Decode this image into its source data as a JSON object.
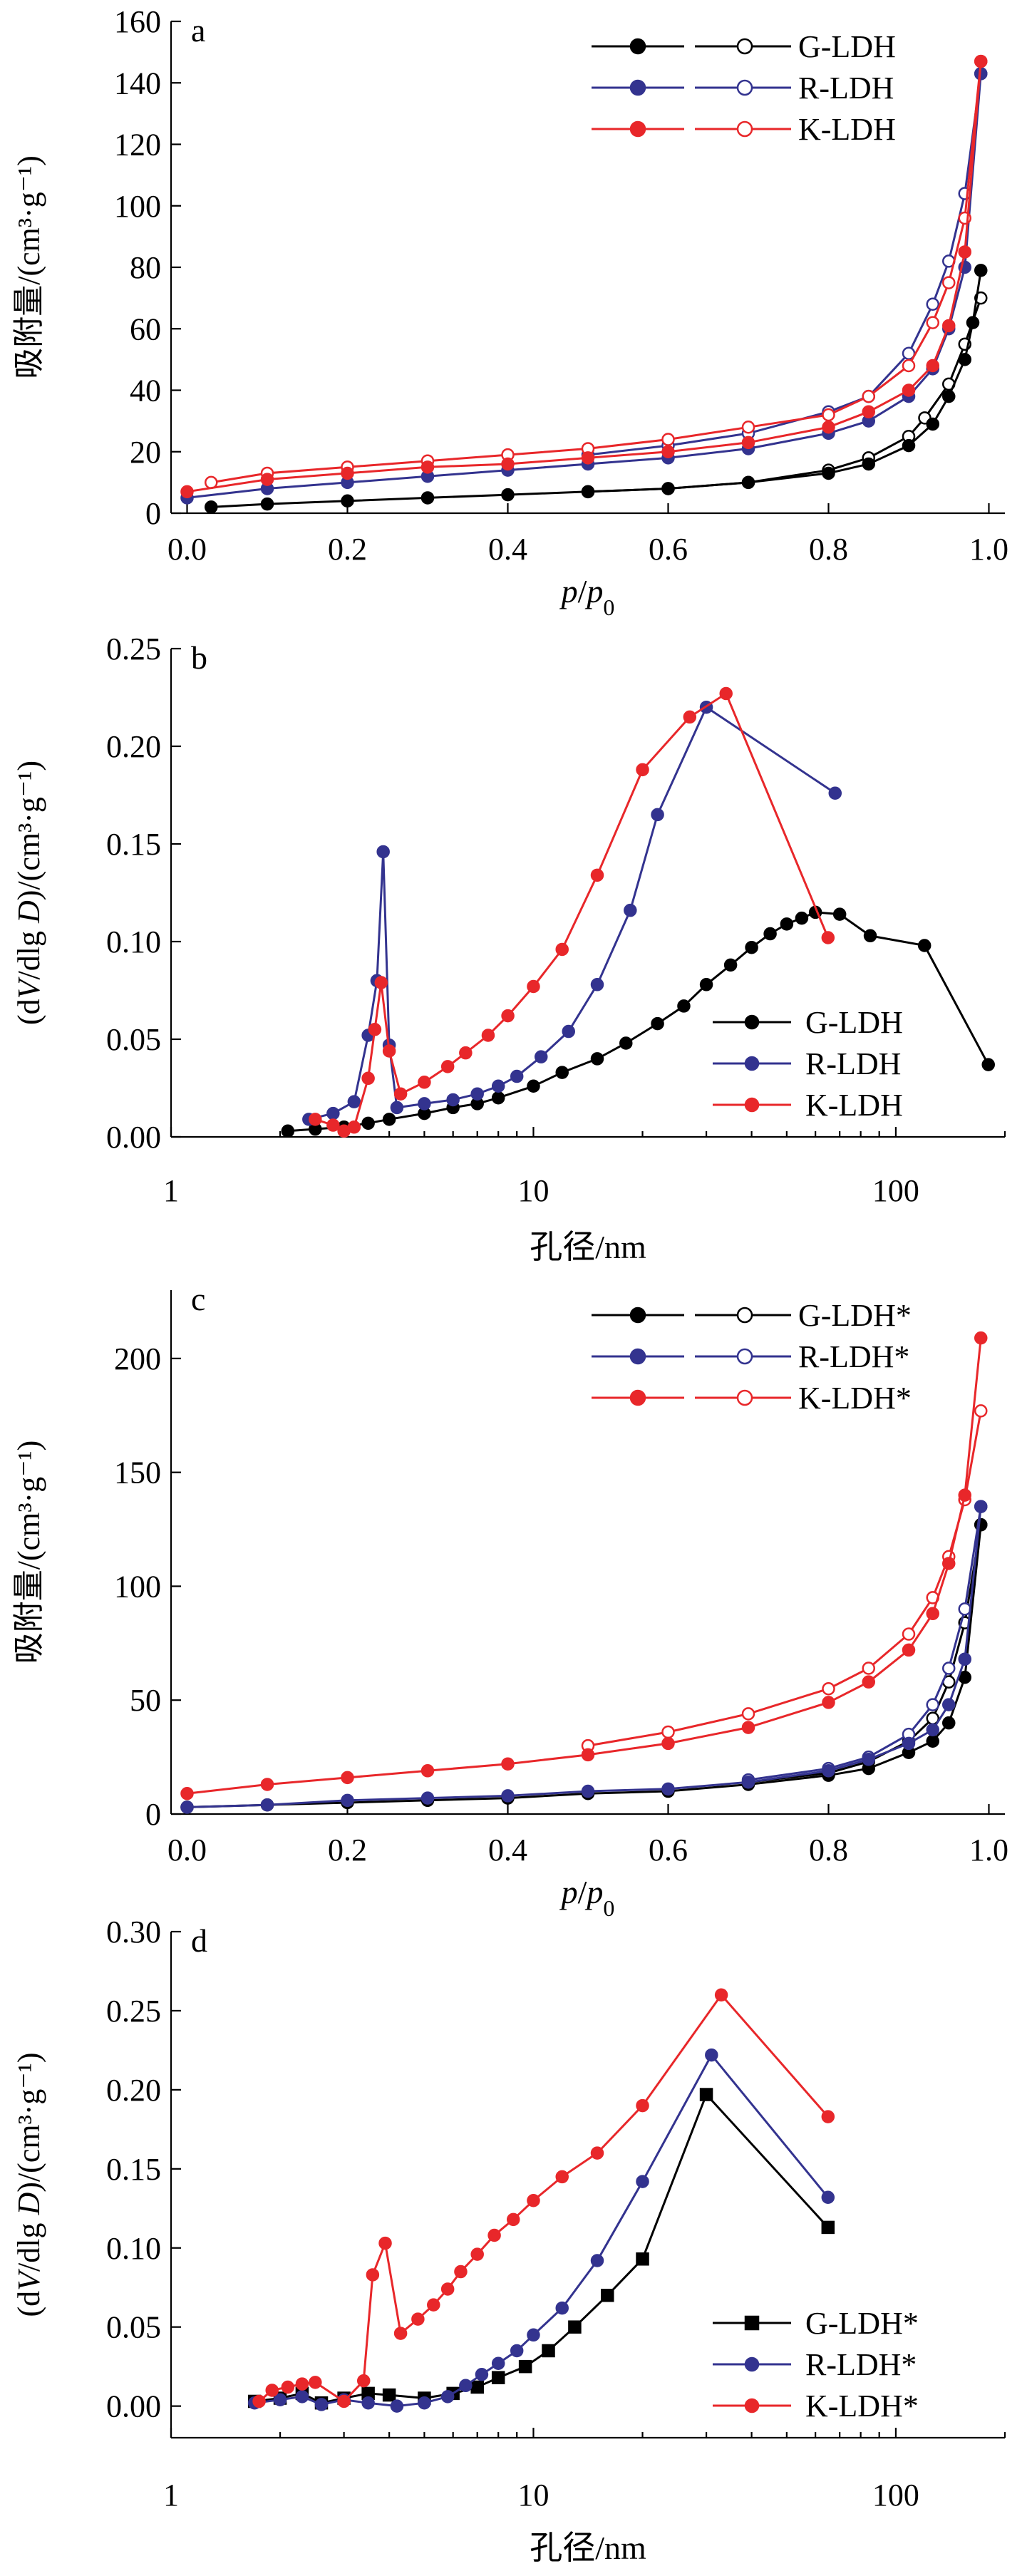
{
  "chart_data": [
    {
      "type": "line",
      "panel": "a",
      "xlabel_parts": [
        "p",
        "/",
        "p",
        "0"
      ],
      "ylabel": "吸附量/(cm³·g⁻¹)",
      "xlim": [
        -0.02,
        1.02
      ],
      "ylim": [
        0,
        160
      ],
      "xticks": [
        0.0,
        0.2,
        0.4,
        0.6,
        0.8,
        1.0
      ],
      "xtick_labels": [
        "0.0",
        "0.2",
        "0.4",
        "0.6",
        "0.8",
        "1.0"
      ],
      "yticks": [
        0,
        20,
        40,
        60,
        80,
        100,
        120,
        140,
        160
      ],
      "ytick_labels": [
        "0",
        "20",
        "40",
        "60",
        "80",
        "100",
        "120",
        "140",
        "160"
      ],
      "legend_position": "top-right",
      "legend_style": "adsorption-desorption",
      "series": [
        {
          "name": "G-LDH",
          "color": "#000000",
          "marker": "circle",
          "adsorption": {
            "x": [
              0.03,
              0.1,
              0.2,
              0.3,
              0.4,
              0.5,
              0.6,
              0.7,
              0.8,
              0.85,
              0.9,
              0.93,
              0.95,
              0.97,
              0.98,
              0.99
            ],
            "y": [
              2,
              3,
              4,
              5,
              6,
              7,
              8,
              10,
              13,
              16,
              22,
              29,
              38,
              50,
              62,
              79
            ]
          },
          "desorption": {
            "x": [
              0.99,
              0.97,
              0.95,
              0.92,
              0.9,
              0.85,
              0.8,
              0.7,
              0.6,
              0.5
            ],
            "y": [
              70,
              55,
              42,
              31,
              25,
              18,
              14,
              10,
              8,
              7
            ]
          }
        },
        {
          "name": "R-LDH",
          "color": "#33338f",
          "marker": "circle",
          "adsorption": {
            "x": [
              0.0,
              0.1,
              0.2,
              0.3,
              0.4,
              0.5,
              0.6,
              0.7,
              0.8,
              0.85,
              0.9,
              0.93,
              0.95,
              0.97,
              0.99
            ],
            "y": [
              5,
              8,
              10,
              12,
              14,
              16,
              18,
              21,
              26,
              30,
              38,
              47,
              60,
              80,
              143
            ]
          },
          "desorption": {
            "x": [
              0.99,
              0.97,
              0.95,
              0.93,
              0.9,
              0.85,
              0.8,
              0.7,
              0.6,
              0.5
            ],
            "y": [
              143,
              104,
              82,
              68,
              52,
              38,
              33,
              26,
              22,
              19
            ]
          }
        },
        {
          "name": "K-LDH",
          "color": "#e8272a",
          "marker": "circle",
          "adsorption": {
            "x": [
              0.0,
              0.1,
              0.2,
              0.3,
              0.4,
              0.5,
              0.6,
              0.7,
              0.8,
              0.85,
              0.9,
              0.93,
              0.95,
              0.97,
              0.99
            ],
            "y": [
              7,
              11,
              13,
              15,
              16,
              18,
              20,
              23,
              28,
              33,
              40,
              48,
              61,
              85,
              147
            ]
          },
          "desorption": {
            "x": [
              0.99,
              0.97,
              0.95,
              0.93,
              0.9,
              0.85,
              0.8,
              0.7,
              0.6,
              0.5,
              0.4,
              0.3,
              0.2,
              0.1,
              0.03
            ],
            "y": [
              147,
              96,
              75,
              62,
              48,
              38,
              32,
              28,
              24,
              21,
              19,
              17,
              15,
              13,
              10
            ]
          }
        }
      ]
    },
    {
      "type": "line",
      "panel": "b",
      "xscale": "log",
      "xlabel": "孔径/nm",
      "ylabel_parts": [
        "(d",
        "V",
        "/dlg ",
        "D",
        ")/(cm³·g⁻¹)"
      ],
      "xlim": [
        1,
        200
      ],
      "ylim": [
        0,
        0.25
      ],
      "xticks": [
        1,
        10,
        100
      ],
      "xtick_labels": [
        "1",
        "10",
        "100"
      ],
      "yticks": [
        0,
        0.05,
        0.1,
        0.15,
        0.2,
        0.25
      ],
      "ytick_labels": [
        "0.00",
        "0.05",
        "0.10",
        "0.15",
        "0.20",
        "0.25"
      ],
      "legend_position": "bottom-right",
      "series": [
        {
          "name": "G-LDH",
          "color": "#000000",
          "marker": "circle",
          "x": [
            2.1,
            2.5,
            3.0,
            3.5,
            4.0,
            5.0,
            6.0,
            7.0,
            8.0,
            10,
            12,
            15,
            18,
            22,
            26,
            30,
            35,
            40,
            45,
            50,
            55,
            60,
            70,
            85,
            120,
            180
          ],
          "y": [
            0.003,
            0.004,
            0.005,
            0.007,
            0.009,
            0.012,
            0.015,
            0.017,
            0.02,
            0.026,
            0.033,
            0.04,
            0.048,
            0.058,
            0.067,
            0.078,
            0.088,
            0.097,
            0.104,
            0.109,
            0.112,
            0.115,
            0.114,
            0.103,
            0.098,
            0.037
          ]
        },
        {
          "name": "R-LDH",
          "color": "#33338f",
          "marker": "circle",
          "x": [
            2.4,
            2.8,
            3.2,
            3.5,
            3.7,
            3.85,
            4.0,
            4.2,
            5.0,
            6.0,
            7.0,
            8.0,
            9.0,
            10.5,
            12.5,
            15,
            18.5,
            22,
            30,
            68
          ],
          "y": [
            0.009,
            0.012,
            0.018,
            0.052,
            0.08,
            0.146,
            0.047,
            0.015,
            0.017,
            0.019,
            0.022,
            0.026,
            0.031,
            0.041,
            0.054,
            0.078,
            0.116,
            0.165,
            0.22,
            0.176
          ]
        },
        {
          "name": "K-LDH",
          "color": "#e8272a",
          "marker": "circle",
          "x": [
            2.5,
            2.8,
            3.0,
            3.2,
            3.5,
            3.65,
            3.8,
            4.0,
            4.3,
            5.0,
            5.8,
            6.5,
            7.5,
            8.5,
            10,
            12,
            15,
            20,
            27,
            34,
            65
          ],
          "y": [
            0.009,
            0.006,
            0.003,
            0.005,
            0.03,
            0.055,
            0.079,
            0.044,
            0.022,
            0.028,
            0.036,
            0.043,
            0.052,
            0.062,
            0.077,
            0.096,
            0.134,
            0.188,
            0.215,
            0.227,
            0.102
          ]
        }
      ]
    },
    {
      "type": "line",
      "panel": "c",
      "xlabel_parts": [
        "p",
        "/",
        "p",
        "0"
      ],
      "ylabel": "吸附量/(cm³·g⁻¹)",
      "xlim": [
        -0.02,
        1.02
      ],
      "ylim": [
        0,
        230
      ],
      "xticks": [
        0.0,
        0.2,
        0.4,
        0.6,
        0.8,
        1.0
      ],
      "xtick_labels": [
        "0.0",
        "0.2",
        "0.4",
        "0.6",
        "0.8",
        "1.0"
      ],
      "yticks": [
        0,
        50,
        100,
        150,
        200
      ],
      "ytick_labels": [
        "0",
        "50",
        "100",
        "150",
        "200"
      ],
      "legend_position": "top-right",
      "legend_style": "adsorption-desorption",
      "series": [
        {
          "name": "G-LDH*",
          "color": "#000000",
          "marker": "circle",
          "adsorption": {
            "x": [
              0.0,
              0.1,
              0.2,
              0.3,
              0.4,
              0.5,
              0.6,
              0.7,
              0.8,
              0.85,
              0.9,
              0.93,
              0.95,
              0.97,
              0.99
            ],
            "y": [
              3,
              4,
              5,
              6,
              7,
              9,
              10,
              13,
              17,
              20,
              27,
              32,
              40,
              60,
              127
            ]
          },
          "desorption": {
            "x": [
              0.99,
              0.97,
              0.95,
              0.93,
              0.9,
              0.85,
              0.8,
              0.7
            ],
            "y": [
              127,
              84,
              58,
              42,
              32,
              23,
              18,
              14
            ]
          }
        },
        {
          "name": "R-LDH*",
          "color": "#33338f",
          "marker": "circle",
          "adsorption": {
            "x": [
              0.0,
              0.1,
              0.2,
              0.3,
              0.4,
              0.5,
              0.6,
              0.7,
              0.8,
              0.85,
              0.9,
              0.93,
              0.95,
              0.97,
              0.99
            ],
            "y": [
              3,
              4,
              6,
              7,
              8,
              10,
              11,
              14,
              19,
              24,
              31,
              37,
              48,
              68,
              135
            ]
          },
          "desorption": {
            "x": [
              0.99,
              0.97,
              0.95,
              0.93,
              0.9,
              0.85,
              0.8,
              0.7
            ],
            "y": [
              135,
              90,
              64,
              48,
              35,
              25,
              20,
              15
            ]
          }
        },
        {
          "name": "K-LDH*",
          "color": "#e8272a",
          "marker": "circle",
          "adsorption": {
            "x": [
              0.0,
              0.1,
              0.2,
              0.3,
              0.4,
              0.5,
              0.6,
              0.7,
              0.8,
              0.85,
              0.9,
              0.93,
              0.95,
              0.97,
              0.99
            ],
            "y": [
              9,
              13,
              16,
              19,
              22,
              26,
              31,
              38,
              49,
              58,
              72,
              88,
              110,
              140,
              209
            ]
          },
          "desorption": {
            "x": [
              0.99,
              0.97,
              0.95,
              0.93,
              0.9,
              0.85,
              0.8,
              0.7,
              0.6,
              0.5
            ],
            "y": [
              177,
              138,
              113,
              95,
              79,
              64,
              55,
              44,
              36,
              30
            ]
          }
        }
      ]
    },
    {
      "type": "line",
      "panel": "d",
      "xscale": "log",
      "xlabel": "孔径/nm",
      "ylabel_parts": [
        "(d",
        "V",
        "/dlg ",
        "D",
        ")/(cm³·g⁻¹)"
      ],
      "xlim": [
        1,
        200
      ],
      "ylim": [
        -0.02,
        0.3
      ],
      "xticks": [
        1,
        10,
        100
      ],
      "xtick_labels": [
        "1",
        "10",
        "100"
      ],
      "yticks": [
        0,
        0.05,
        0.1,
        0.15,
        0.2,
        0.25,
        0.3
      ],
      "ytick_labels": [
        "0.00",
        "0.05",
        "0.10",
        "0.15",
        "0.20",
        "0.25",
        "0.30"
      ],
      "legend_position": "bottom-right",
      "series": [
        {
          "name": "G-LDH*",
          "color": "#000000",
          "marker": "square",
          "x": [
            1.7,
            2.0,
            2.3,
            2.6,
            3.0,
            3.5,
            4.0,
            5.0,
            6.0,
            7.0,
            8.0,
            9.5,
            11,
            13,
            16,
            20,
            30,
            65
          ],
          "y": [
            0.003,
            0.005,
            0.008,
            0.002,
            0.005,
            0.008,
            0.007,
            0.005,
            0.008,
            0.012,
            0.018,
            0.025,
            0.035,
            0.05,
            0.07,
            0.093,
            0.197,
            0.113
          ]
        },
        {
          "name": "R-LDH*",
          "color": "#33338f",
          "marker": "circle",
          "x": [
            1.7,
            2.0,
            2.3,
            2.6,
            3.0,
            3.5,
            4.2,
            5.0,
            5.8,
            6.5,
            7.2,
            8.0,
            9.0,
            10,
            12,
            15,
            20,
            31,
            65
          ],
          "y": [
            0.002,
            0.004,
            0.006,
            0.001,
            0.004,
            0.002,
            0.0,
            0.002,
            0.006,
            0.013,
            0.02,
            0.027,
            0.035,
            0.045,
            0.062,
            0.092,
            0.142,
            0.222,
            0.132
          ]
        },
        {
          "name": "K-LDH*",
          "color": "#e8272a",
          "marker": "circle",
          "x": [
            1.75,
            1.9,
            2.1,
            2.3,
            2.5,
            3.0,
            3.4,
            3.6,
            3.9,
            4.3,
            4.8,
            5.3,
            5.8,
            6.3,
            7.0,
            7.8,
            8.8,
            10,
            12,
            15,
            20,
            33,
            65
          ],
          "y": [
            0.003,
            0.01,
            0.012,
            0.014,
            0.015,
            0.003,
            0.016,
            0.083,
            0.103,
            0.046,
            0.055,
            0.064,
            0.074,
            0.085,
            0.096,
            0.108,
            0.118,
            0.13,
            0.145,
            0.16,
            0.19,
            0.26,
            0.183
          ]
        }
      ]
    }
  ],
  "panel_labels": [
    "a",
    "b",
    "c",
    "d"
  ]
}
